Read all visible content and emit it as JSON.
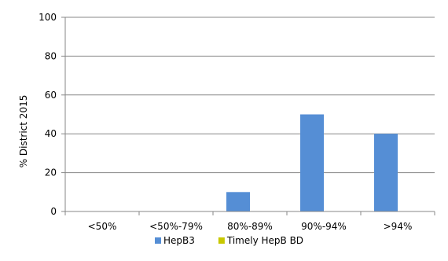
{
  "chart_data": {
    "type": "bar",
    "categories": [
      "<50%",
      "<50%-79%",
      "80%-89%",
      "90%-94%",
      ">94%"
    ],
    "series": [
      {
        "name": "HepB3",
        "values": [
          0,
          0,
          10,
          50,
          40
        ],
        "color": "#558ED5"
      },
      {
        "name": "Timely HepB BD",
        "values": [
          0,
          0,
          0,
          0,
          0
        ],
        "color": "#C8C800"
      }
    ],
    "xlabel": "",
    "ylabel": "% District 2015",
    "ylim": [
      0,
      100
    ],
    "yticks": [
      0,
      20,
      40,
      60,
      80,
      100
    ],
    "grid": true,
    "legend_position": "bottom"
  }
}
